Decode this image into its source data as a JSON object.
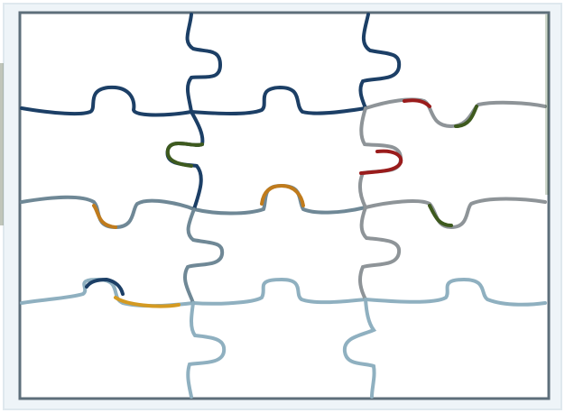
{
  "puzzle": {
    "rows": 4,
    "cols": 3,
    "piece_count": 12,
    "colors": {
      "background": "#ffffff",
      "frame": "#5d6e7a",
      "frame_inner": "#eef4f8",
      "dark_line": "#1c3f66",
      "mid_line": "#6f8896",
      "light_line": "#8fb0c0",
      "gray_line": "#8e9498",
      "accent_red": "#9a1c1c",
      "accent_orange": "#c07b1c",
      "accent_green": "#3e5a1e",
      "accent_gold": "#d49a22"
    }
  }
}
